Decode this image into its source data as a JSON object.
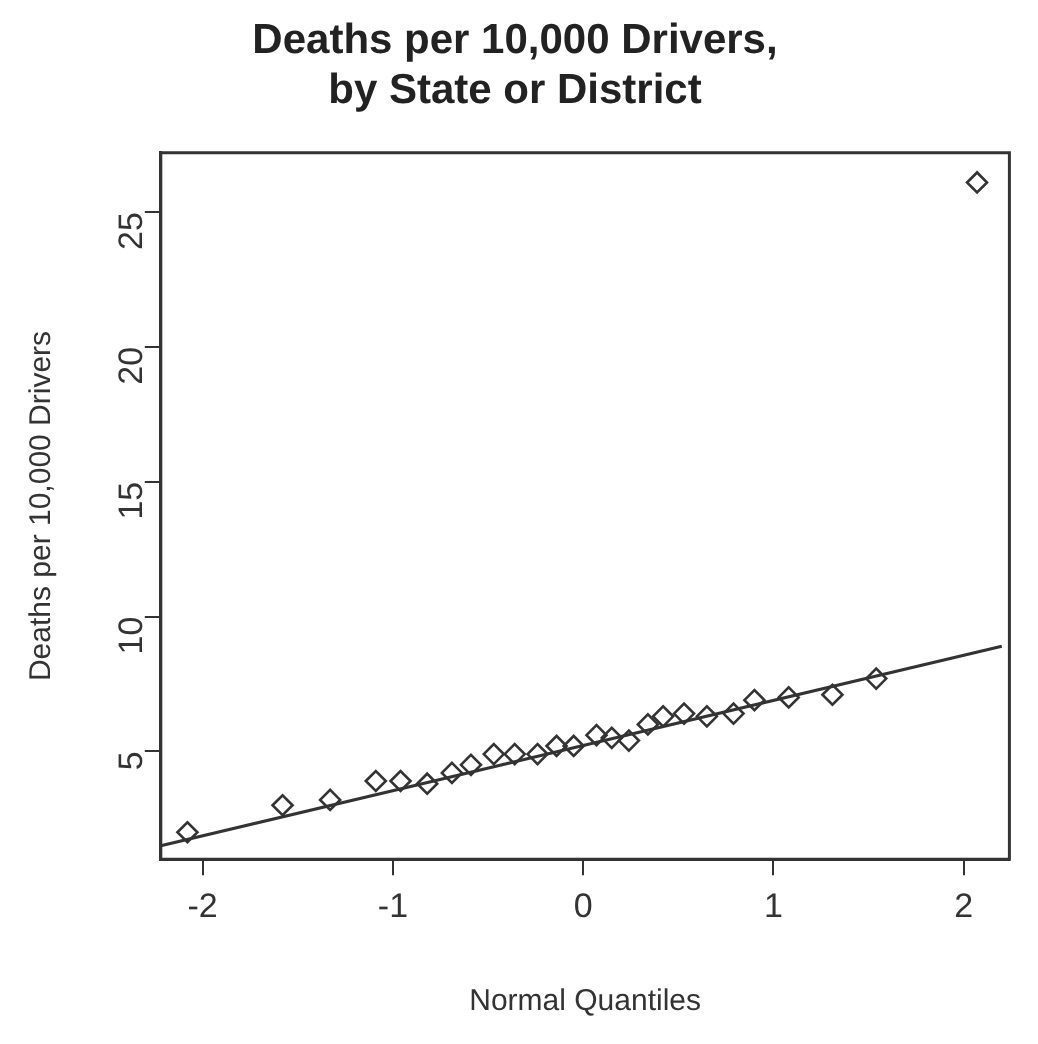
{
  "chart_data": {
    "type": "scatter",
    "title": "Deaths per 10,000 Drivers,\nby State or District",
    "xlabel": "Normal Quantiles",
    "ylabel": "Deaths per 10,000 Drivers",
    "xlim": [
      -2.22,
      2.24
    ],
    "ylim": [
      1,
      27.2
    ],
    "xticks": [
      -2,
      -1,
      0,
      1,
      2
    ],
    "yticks": [
      5,
      10,
      15,
      20,
      25
    ],
    "grid": false,
    "legend": false,
    "marker": "diamond",
    "series": [
      {
        "color": "#333333",
        "x": [
          -2.08,
          -1.58,
          -1.33,
          -1.09,
          -0.96,
          -0.82,
          -0.69,
          -0.59,
          -0.47,
          -0.36,
          -0.24,
          -0.14,
          -0.05,
          0.07,
          0.15,
          0.24,
          0.34,
          0.42,
          0.53,
          0.65,
          0.79,
          0.9,
          1.08,
          1.31,
          1.54,
          2.07
        ],
        "values": [
          2,
          3,
          3.2,
          3.9,
          3.9,
          3.8,
          4.2,
          4.5,
          4.9,
          4.9,
          4.9,
          5.2,
          5.2,
          5.6,
          5.5,
          5.4,
          6,
          6.3,
          6.4,
          6.3,
          6.4,
          6.9,
          7,
          7.1,
          7.7,
          26.1
        ]
      },
      {
        "type": "line",
        "color": "#333333",
        "line_style": "solid",
        "marker": "none",
        "x": [
          -2.22,
          2.2
        ],
        "values": [
          1.5,
          8.9
        ]
      }
    ]
  }
}
